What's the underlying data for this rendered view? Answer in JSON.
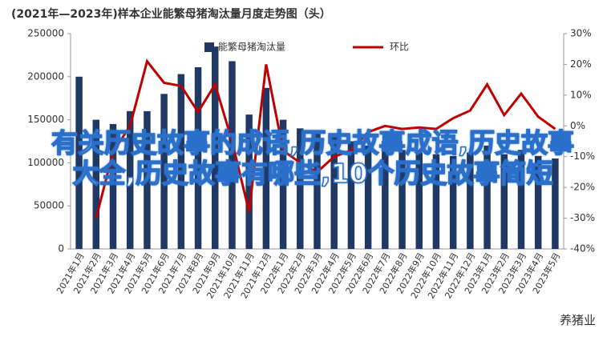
{
  "chart_data": {
    "type": "bar-line",
    "title": "(2021年—2023年)样本企业能繁母猪淘汰量月度走势图（头）",
    "categories": [
      "2021年1月",
      "2021年2月",
      "2021年3月",
      "2021年4月",
      "2021年5月",
      "2021年6月",
      "2021年7月",
      "2021年8月",
      "2021年9月",
      "2021年10月",
      "2021年11月",
      "2021年12月",
      "2022年1月",
      "2022年2月",
      "2022年3月",
      "2022年4月",
      "2022年5月",
      "2022年6月",
      "2022年7月",
      "2022年8月",
      "2022年9月",
      "2022年10月",
      "2022年11月",
      "2022年12月",
      "2023年1月",
      "2023年2月",
      "2023年3月",
      "2023年4月",
      "2023年5月"
    ],
    "series": [
      {
        "name": "能繁母猪淘汰量",
        "color": "#1f3864",
        "values": [
          200000,
          150000,
          145000,
          160000,
          160000,
          180000,
          203000,
          211000,
          235000,
          218000,
          156000,
          187000,
          150000,
          140000,
          135000,
          130000,
          125000,
          120000,
          118000,
          115000,
          112000,
          110000,
          108000,
          112000,
          120000,
          110000,
          115000,
          108000,
          105000
        ]
      },
      {
        "name": "环比",
        "color": "#c00000",
        "axis": "y2",
        "values": [
          null,
          -30,
          -8.5,
          0,
          21,
          14,
          13,
          4.5,
          13.5,
          -5,
          -28,
          20,
          -8,
          -12,
          -15,
          -10,
          -8,
          -2,
          0,
          -1,
          -0.5,
          -1,
          2.5,
          5,
          13.5,
          3.5,
          10.5,
          3,
          -1
        ]
      }
    ],
    "ylim": [
      0,
      250000
    ],
    "yticks": [
      0,
      50000,
      100000,
      150000,
      200000,
      250000
    ],
    "y2lim": [
      -40,
      30
    ],
    "y2ticks": [
      {
        "value": -40,
        "label": "-40%"
      },
      {
        "value": -30,
        "label": "-30%"
      },
      {
        "value": -20,
        "label": "-20%"
      },
      {
        "value": -10,
        "label": "-10%"
      },
      {
        "value": 0,
        "label": "0%"
      },
      {
        "value": 10,
        "label": "10%"
      },
      {
        "value": 20,
        "label": "20%"
      },
      {
        "value": 30,
        "label": "30%"
      }
    ]
  },
  "overlay_title": "有关历史故事的成语,历史故事成语,历史故事大全,历史故事有哪些,10个历史故事简短",
  "watermark": "养猪业"
}
